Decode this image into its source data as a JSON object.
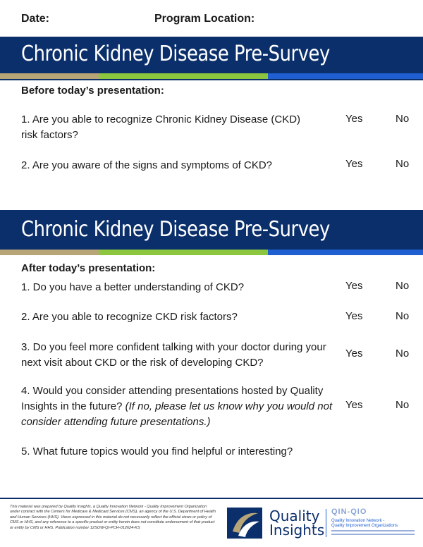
{
  "header": {
    "date_label": "Date:",
    "location_label": "Program Location:"
  },
  "survey_title": "Chronic Kidney Disease Pre-Survey",
  "before": {
    "label": "Before today’s presentation:",
    "questions": [
      {
        "text": "1. Are you able to recognize Chronic Kidney Disease (CKD) risk factors?",
        "yes": "Yes",
        "no": "No"
      },
      {
        "text": "2. Are you aware of the signs and symptoms of CKD?",
        "yes": "Yes",
        "no": "No"
      }
    ]
  },
  "after": {
    "label": "After today’s presentation:",
    "questions": [
      {
        "text": "1. Do you have a better understanding of CKD?",
        "yes": "Yes",
        "no": "No"
      },
      {
        "text": "2. Are you able to recognize CKD risk factors?",
        "yes": "Yes",
        "no": "No"
      },
      {
        "text": "3. Do you feel more confident talking with your doctor during your next visit about CKD or the risk of developing CKD?",
        "yes": "Yes",
        "no": "No"
      },
      {
        "text_main": "4. Would you consider attending presentations hosted by Quality Insights in the future?",
        "text_italic": "(If no, please let us know why you would not consider attending future presentations.)",
        "yes": "Yes",
        "no": "No"
      },
      {
        "text": "5. What future topics would you find helpful or interesting?"
      }
    ]
  },
  "footer": {
    "disclaimer": "This material was prepared by Quality Insights, a Quality Innovation Network - Quality Improvement Organization under contract with the Centers for Medicare & Medicaid Services (CMS), an agency of the U.S. Department of Health and Human Services (HHS). Views expressed in this material do not necessarily reflect the official views or policy of CMS or HHS, and any reference to a specific product or entity herein does not constitute endorsement of that product or entity by CMS or HHS. Publication number 12SOW-QI-PCH-012624-KS",
    "brand_line1": "Quality",
    "brand_line2": "Insights",
    "qin_label": "QIN-QIO",
    "network_line1": "Quality Innovation Network -",
    "network_line2": "Quality Improvement Organizations",
    "colors": {
      "navy": "#0b2f6b",
      "gold": "#b7a577",
      "green": "#8cc63e",
      "blue": "#1f5fd1"
    }
  }
}
